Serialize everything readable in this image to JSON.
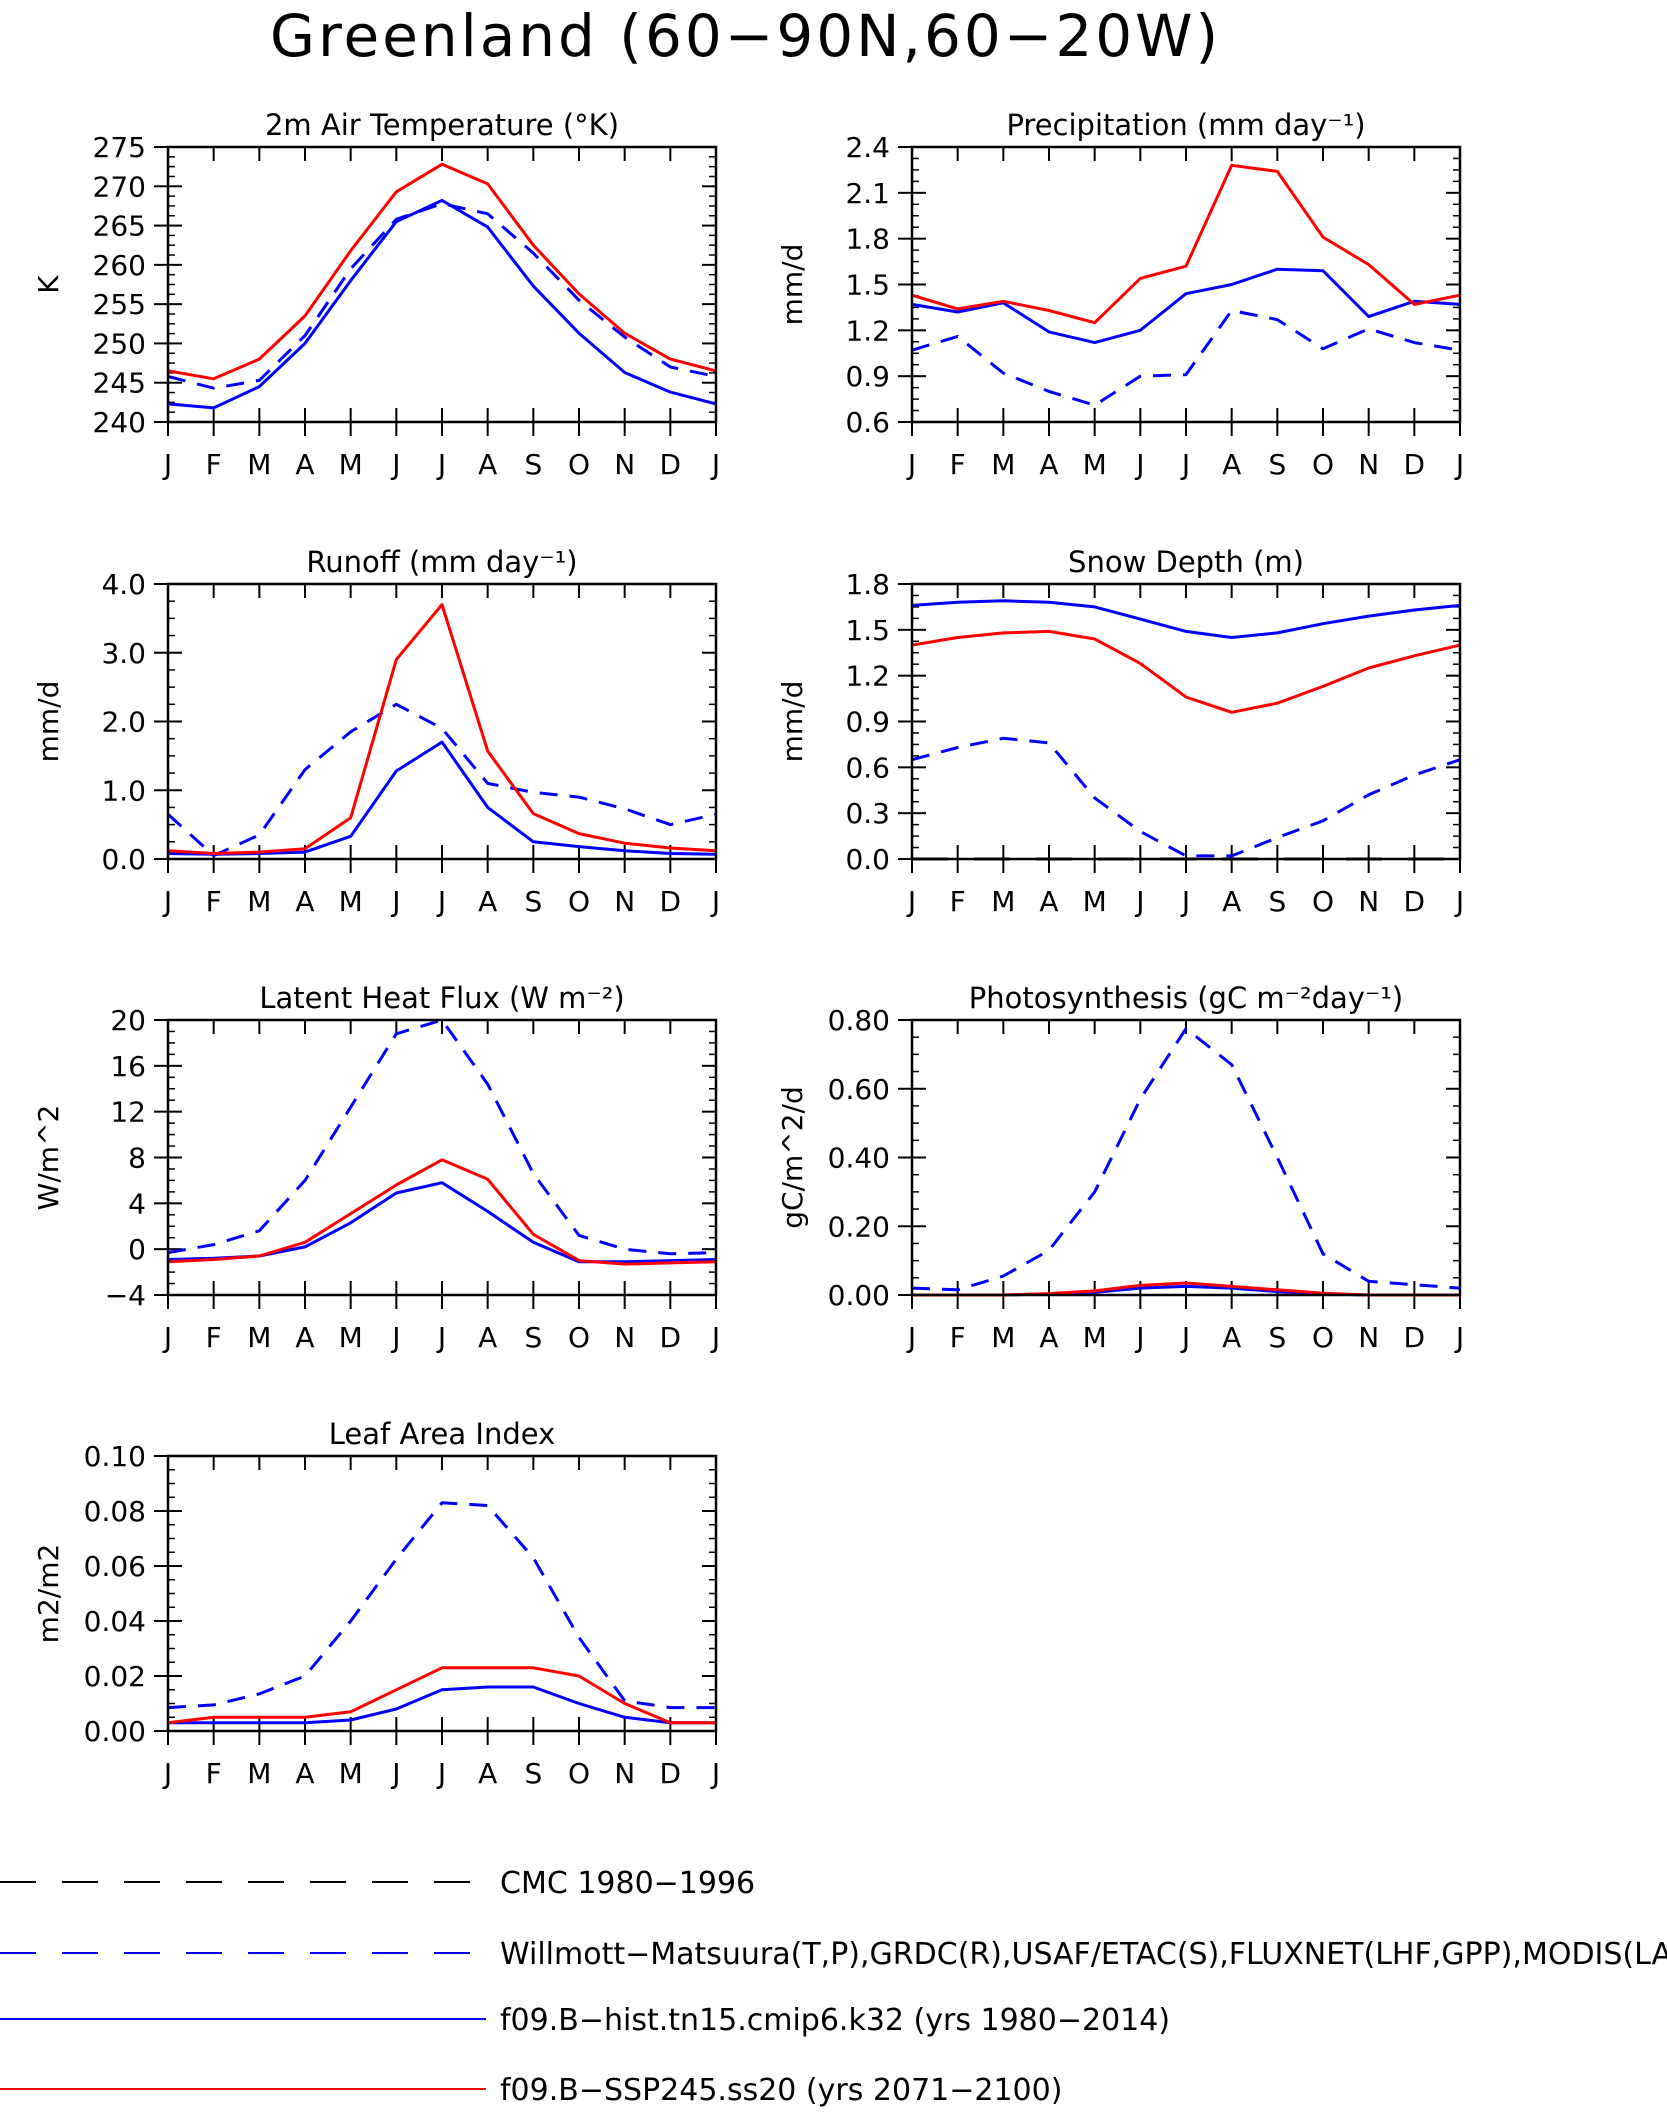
{
  "page": {
    "title": "Greenland (60−90N,60−20W)"
  },
  "months": [
    "J",
    "F",
    "M",
    "A",
    "M",
    "J",
    "J",
    "A",
    "S",
    "O",
    "N",
    "D",
    "J"
  ],
  "legend": [
    {
      "label": "CMC 1980−1996",
      "color": "#000000",
      "style": "dashed"
    },
    {
      "label": "Willmott−Matsuura(T,P),GRDC(R),USAF/ETAC(S),FLUXNET(LHF,GPP),MODIS(LAI)",
      "color": "#0000ff",
      "style": "dashed"
    },
    {
      "label": "f09.B−hist.tn15.cmip6.k32 (yrs 1980−2014)",
      "color": "#0000ff",
      "style": "solid"
    },
    {
      "label": "f09.B−SSP245.ss20 (yrs 2071−2100)",
      "color": "#ff0000",
      "style": "solid"
    }
  ],
  "chart_data": [
    {
      "type": "line",
      "title": "2m Air Temperature (°K)",
      "ylabel": "K",
      "ylim": [
        240,
        275
      ],
      "yticks": [
        240,
        245,
        250,
        255,
        260,
        265,
        270,
        275
      ],
      "yticklabels": [
        "240",
        "245",
        "250",
        "255",
        "260",
        "265",
        "270",
        "275"
      ],
      "series": [
        {
          "style": "obs",
          "values": [
            245.8,
            244.3,
            245.3,
            251.0,
            259.5,
            265.8,
            267.8,
            266.5,
            261.5,
            255.5,
            250.8,
            247.0,
            245.8
          ]
        },
        {
          "style": "hist",
          "values": [
            242.3,
            241.8,
            244.5,
            250.0,
            258.0,
            265.5,
            268.2,
            264.8,
            257.3,
            251.3,
            246.3,
            243.8,
            242.3
          ]
        },
        {
          "style": "ssp",
          "values": [
            246.5,
            245.5,
            248.0,
            253.5,
            261.8,
            269.3,
            272.8,
            270.3,
            262.5,
            256.3,
            251.3,
            248.0,
            246.5
          ]
        }
      ]
    },
    {
      "type": "line",
      "title": "Precipitation (mm day⁻¹)",
      "ylabel": "mm/d",
      "ylim": [
        0.6,
        2.4
      ],
      "yticks": [
        0.6,
        0.9,
        1.2,
        1.5,
        1.8,
        2.1,
        2.4
      ],
      "yticklabels": [
        "0.6",
        "0.9",
        "1.2",
        "1.5",
        "1.8",
        "2.1",
        "2.4"
      ],
      "series": [
        {
          "style": "obs",
          "values": [
            1.07,
            1.16,
            0.92,
            0.8,
            0.71,
            0.9,
            0.91,
            1.33,
            1.27,
            1.08,
            1.21,
            1.12,
            1.07
          ]
        },
        {
          "style": "hist",
          "values": [
            1.37,
            1.32,
            1.38,
            1.19,
            1.12,
            1.2,
            1.44,
            1.5,
            1.6,
            1.59,
            1.29,
            1.39,
            1.37
          ]
        },
        {
          "style": "ssp",
          "values": [
            1.43,
            1.34,
            1.39,
            1.33,
            1.25,
            1.54,
            1.62,
            2.28,
            2.24,
            1.81,
            1.63,
            1.37,
            1.43
          ]
        }
      ]
    },
    {
      "type": "line",
      "title": "Runoff (mm day⁻¹)",
      "ylabel": "mm/d",
      "ylim": [
        0,
        4
      ],
      "yticks": [
        0,
        1,
        2,
        3,
        4
      ],
      "yticklabels": [
        "0.0",
        "1.0",
        "2.0",
        "3.0",
        "4.0"
      ],
      "series": [
        {
          "style": "obs",
          "values": [
            0.65,
            0.05,
            0.35,
            1.3,
            1.85,
            2.25,
            1.9,
            1.1,
            0.97,
            0.9,
            0.73,
            0.5,
            0.65
          ]
        },
        {
          "style": "hist",
          "values": [
            0.08,
            0.07,
            0.08,
            0.1,
            0.33,
            1.28,
            1.7,
            0.75,
            0.25,
            0.18,
            0.12,
            0.08,
            0.07
          ]
        },
        {
          "style": "ssp",
          "values": [
            0.12,
            0.08,
            0.1,
            0.15,
            0.6,
            2.9,
            3.7,
            1.57,
            0.66,
            0.37,
            0.23,
            0.16,
            0.12
          ]
        }
      ]
    },
    {
      "type": "line",
      "title": "Snow Depth (m)",
      "ylabel": "mm/d",
      "ylim": [
        0,
        1.8
      ],
      "yticks": [
        0,
        0.3,
        0.6,
        0.9,
        1.2,
        1.5,
        1.8
      ],
      "yticklabels": [
        "0.0",
        "0.3",
        "0.6",
        "0.9",
        "1.2",
        "1.5",
        "1.8"
      ],
      "series": [
        {
          "style": "cmc",
          "values": [
            0,
            0,
            0,
            0,
            0,
            0,
            0,
            0,
            0,
            0,
            0,
            0,
            0
          ]
        },
        {
          "style": "obs",
          "values": [
            0.65,
            0.73,
            0.79,
            0.76,
            0.4,
            0.18,
            0.02,
            0.02,
            0.14,
            0.25,
            0.42,
            0.55,
            0.65
          ]
        },
        {
          "style": "hist",
          "values": [
            1.66,
            1.68,
            1.69,
            1.68,
            1.65,
            1.57,
            1.49,
            1.45,
            1.48,
            1.54,
            1.59,
            1.63,
            1.66
          ]
        },
        {
          "style": "ssp",
          "values": [
            1.4,
            1.45,
            1.48,
            1.49,
            1.44,
            1.28,
            1.06,
            0.96,
            1.02,
            1.13,
            1.25,
            1.33,
            1.4
          ]
        }
      ]
    },
    {
      "type": "line",
      "title": "Latent Heat Flux (W m⁻²)",
      "ylabel": "W/m^2",
      "ylim": [
        -4,
        20
      ],
      "yticks": [
        -4,
        0,
        4,
        8,
        12,
        16,
        20
      ],
      "yticklabels": [
        "−4",
        "0",
        "4",
        "8",
        "12",
        "16",
        "20"
      ],
      "series": [
        {
          "style": "obs",
          "values": [
            -0.3,
            0.4,
            1.6,
            6.0,
            12.4,
            18.8,
            20.0,
            14.4,
            6.6,
            1.2,
            0.0,
            -0.4,
            -0.3
          ]
        },
        {
          "style": "hist",
          "values": [
            -0.9,
            -0.8,
            -0.6,
            0.2,
            2.3,
            4.9,
            5.8,
            3.3,
            0.6,
            -1.1,
            -1.1,
            -1.0,
            -0.9
          ]
        },
        {
          "style": "ssp",
          "values": [
            -1.1,
            -0.9,
            -0.6,
            0.6,
            3.1,
            5.6,
            7.8,
            6.1,
            1.3,
            -1.0,
            -1.3,
            -1.2,
            -1.1
          ]
        }
      ]
    },
    {
      "type": "line",
      "title": "Photosynthesis (gC m⁻²day⁻¹)",
      "ylabel": "gC/m^2/d",
      "ylim": [
        0,
        0.8
      ],
      "yticks": [
        0,
        0.2,
        0.4,
        0.6,
        0.8
      ],
      "yticklabels": [
        "0.00",
        "0.20",
        "0.40",
        "0.60",
        "0.80"
      ],
      "series": [
        {
          "style": "obs",
          "values": [
            0.02,
            0.015,
            0.055,
            0.13,
            0.3,
            0.57,
            0.775,
            0.67,
            0.4,
            0.12,
            0.04,
            0.03,
            0.02
          ]
        },
        {
          "style": "hist",
          "values": [
            0.0,
            0.0,
            0.0,
            0.003,
            0.008,
            0.02,
            0.025,
            0.02,
            0.01,
            0.003,
            0.0,
            0.0,
            0.0
          ]
        },
        {
          "style": "ssp",
          "values": [
            0.0,
            0.0,
            0.0,
            0.004,
            0.012,
            0.028,
            0.035,
            0.025,
            0.015,
            0.005,
            0.0,
            0.0,
            0.0
          ]
        }
      ]
    },
    {
      "type": "line",
      "title": "Leaf Area Index",
      "ylabel": "m2/m2",
      "ylim": [
        0,
        0.1
      ],
      "yticks": [
        0,
        0.02,
        0.04,
        0.06,
        0.08,
        0.1
      ],
      "yticklabels": [
        "0.00",
        "0.02",
        "0.04",
        "0.06",
        "0.08",
        "0.10"
      ],
      "series": [
        {
          "style": "obs",
          "values": [
            0.0085,
            0.0095,
            0.0135,
            0.02,
            0.04,
            0.0625,
            0.083,
            0.082,
            0.063,
            0.034,
            0.011,
            0.0085,
            0.0085
          ]
        },
        {
          "style": "hist",
          "values": [
            0.003,
            0.003,
            0.003,
            0.003,
            0.004,
            0.008,
            0.015,
            0.016,
            0.016,
            0.01,
            0.005,
            0.003,
            0.003
          ]
        },
        {
          "style": "ssp",
          "values": [
            0.003,
            0.005,
            0.005,
            0.005,
            0.007,
            0.015,
            0.023,
            0.023,
            0.023,
            0.02,
            0.01,
            0.003,
            0.003
          ]
        }
      ]
    }
  ]
}
